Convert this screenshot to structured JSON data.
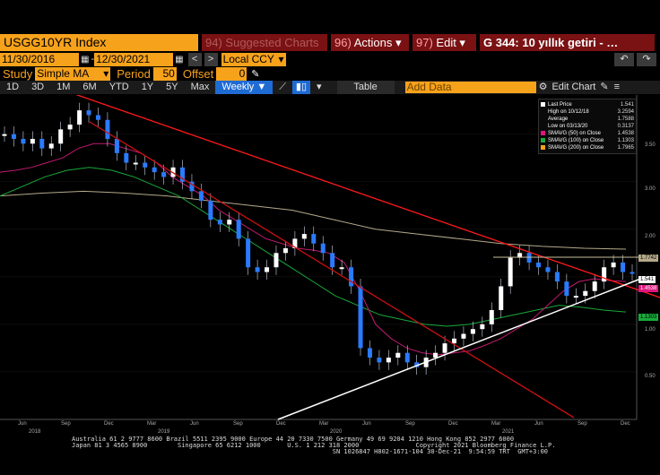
{
  "header": {
    "ticker": "USGG10YR Index",
    "suggested": {
      "num": "94)",
      "label": "Suggested Charts"
    },
    "actions": {
      "num": "96)",
      "label": "Actions ▾"
    },
    "edit": {
      "num": "97)",
      "label": "Edit ▾"
    },
    "title": "G 344: 10 yıllık getiri - …"
  },
  "daterange": {
    "start": "11/30/2016",
    "end": "12/30/2021",
    "ccy": "Local CCY",
    "prev": "<",
    "next": ">",
    "undo": "↶",
    "redo": "↷"
  },
  "study": {
    "label": "Study",
    "value": "Simple MA",
    "period_label": "Period",
    "period": "50",
    "offset_label": "Offset",
    "offset": "0"
  },
  "toolbar": {
    "items": [
      "1D",
      "3D",
      "1M",
      "6M",
      "YTD",
      "1Y",
      "5Y",
      "Max"
    ],
    "active": "Weekly ▼",
    "table": "Table",
    "add_data_placeholder": "Add Data",
    "edit_chart": "Edit Chart"
  },
  "legend": {
    "rows": [
      {
        "label": "Last Price",
        "value": "1.541",
        "color": "#ffffff"
      },
      {
        "label": "High on 10/12/18",
        "value": "3.2594",
        "color": ""
      },
      {
        "label": "Average",
        "value": "1.7588",
        "color": ""
      },
      {
        "label": "Low on 03/13/20",
        "value": "0.3137",
        "color": ""
      },
      {
        "label": "SMAVG (50)  on Close",
        "value": "1.4538",
        "color": "#e0157f"
      },
      {
        "label": "SMAVG (100)  on Close",
        "value": "1.1303",
        "color": "#19a93a"
      },
      {
        "label": "SMAVG (200)  on Close",
        "value": "1.7965",
        "color": "#f7a21b"
      }
    ]
  },
  "price_tags": [
    {
      "value": "1.7742",
      "color": "#b5a98a"
    },
    {
      "value": "1.541",
      "color": "#ffffff"
    },
    {
      "value": "1.4538",
      "color": "#e0157f"
    },
    {
      "value": "1.1303",
      "color": "#19a93a"
    }
  ],
  "chart_data": {
    "type": "line",
    "title": "",
    "y_ticks": [
      "3.50",
      "3.00",
      "2.50",
      "2.00",
      "1.50",
      "1.00",
      "0.50"
    ],
    "ylim": [
      0,
      3.6
    ],
    "x_ticks": [
      {
        "label": "Jun",
        "year": "2018"
      },
      {
        "label": "Sep",
        "year": ""
      },
      {
        "label": "Dec",
        "year": ""
      },
      {
        "label": "Mar",
        "year": "2019"
      },
      {
        "label": "Jun",
        "year": ""
      },
      {
        "label": "Sep",
        "year": ""
      },
      {
        "label": "Dec",
        "year": ""
      },
      {
        "label": "Mar",
        "year": "2020"
      },
      {
        "label": "Jun",
        "year": ""
      },
      {
        "label": "Sep",
        "year": ""
      },
      {
        "label": "Dec",
        "year": ""
      },
      {
        "label": "Mar",
        "year": "2021"
      },
      {
        "label": "Jun",
        "year": ""
      },
      {
        "label": "Sep",
        "year": ""
      },
      {
        "label": "Dec",
        "year": ""
      }
    ],
    "series": [
      {
        "name": "Last Price",
        "values": [
          3.0,
          2.95,
          2.9,
          2.95,
          2.85,
          2.9,
          3.05,
          3.1,
          3.25,
          3.2,
          3.15,
          2.95,
          2.8,
          2.7,
          2.7,
          2.65,
          2.6,
          2.55,
          2.65,
          2.5,
          2.4,
          2.3,
          2.1,
          2.05,
          2.1,
          1.9,
          1.6,
          1.55,
          1.6,
          1.75,
          1.8,
          1.9,
          1.95,
          1.85,
          1.75,
          1.6,
          1.6,
          1.4,
          0.75,
          0.65,
          0.6,
          0.65,
          0.7,
          0.6,
          0.55,
          0.65,
          0.7,
          0.8,
          0.85,
          0.9,
          0.95,
          1.0,
          1.15,
          1.4,
          1.7,
          1.75,
          1.65,
          1.6,
          1.55,
          1.45,
          1.3,
          1.3,
          1.35,
          1.45,
          1.6,
          1.65,
          1.55,
          1.54
        ]
      },
      {
        "name": "SMAVG (50)",
        "values": [
          2.6,
          2.62,
          2.65,
          2.7,
          2.75,
          2.85,
          2.9,
          2.9,
          2.85,
          2.8,
          2.7,
          2.55,
          2.45,
          2.35,
          2.2,
          2.1,
          2.0,
          1.9,
          1.85,
          1.8,
          1.78,
          1.75,
          1.65,
          1.35,
          1.0,
          0.85,
          0.75,
          0.7,
          0.68,
          0.7,
          0.72,
          0.78,
          0.85,
          0.95,
          1.05,
          1.2,
          1.35,
          1.45,
          1.48,
          1.46,
          1.45
        ]
      },
      {
        "name": "SMAVG (100)",
        "values": [
          2.35,
          2.45,
          2.55,
          2.62,
          2.65,
          2.62,
          2.55,
          2.45,
          2.35,
          2.2,
          2.05,
          1.9,
          1.75,
          1.6,
          1.45,
          1.3,
          1.2,
          1.1,
          1.05,
          1.0,
          0.98,
          1.0,
          1.05,
          1.1,
          1.15,
          1.2,
          1.18,
          1.15,
          1.13
        ]
      },
      {
        "name": "SMAVG (200)",
        "values": [
          2.35,
          2.38,
          2.4,
          2.38,
          2.35,
          2.3,
          2.25,
          2.2,
          2.1,
          2.0,
          1.95,
          1.9,
          1.85,
          1.82,
          1.8,
          1.79
        ]
      }
    ]
  }
}
